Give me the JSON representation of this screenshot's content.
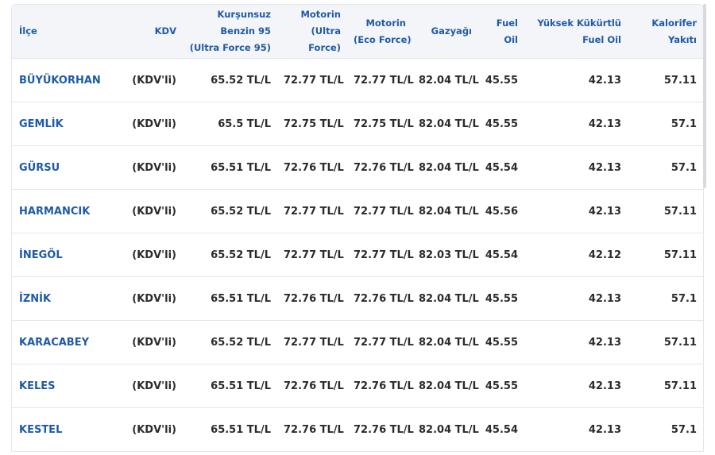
{
  "table": {
    "headers": [
      [
        "İlçe"
      ],
      [
        "KDV"
      ],
      [
        "Kurşunsuz",
        "Benzin 95",
        "(Ultra Force 95)"
      ],
      [
        "Motorin",
        "(Ultra",
        "Force)"
      ],
      [
        "Motorin",
        "(Eco Force)"
      ],
      [
        "Gazyağı"
      ],
      [
        "Fuel",
        "Oil"
      ],
      [
        "Yüksek Kükürtlü",
        "Fuel Oil"
      ],
      [
        "Kalorifer",
        "Yakıtı"
      ]
    ],
    "rows": [
      [
        "BÜYÜKORHAN",
        "(KDV'li)",
        "65.52 TL/L",
        "72.77 TL/L",
        "72.77 TL/L",
        "82.04 TL/L",
        "45.55",
        "42.13",
        "57.11"
      ],
      [
        "GEMLİK",
        "(KDV'li)",
        "65.5 TL/L",
        "72.75 TL/L",
        "72.75 TL/L",
        "82.04 TL/L",
        "45.55",
        "42.13",
        "57.1"
      ],
      [
        "GÜRSU",
        "(KDV'li)",
        "65.51 TL/L",
        "72.76 TL/L",
        "72.76 TL/L",
        "82.04 TL/L",
        "45.54",
        "42.13",
        "57.1"
      ],
      [
        "HARMANCIK",
        "(KDV'li)",
        "65.52 TL/L",
        "72.77 TL/L",
        "72.77 TL/L",
        "82.04 TL/L",
        "45.56",
        "42.13",
        "57.11"
      ],
      [
        "İNEGÖL",
        "(KDV'li)",
        "65.52 TL/L",
        "72.77 TL/L",
        "72.77 TL/L",
        "82.03 TL/L",
        "45.54",
        "42.12",
        "57.11"
      ],
      [
        "İZNİK",
        "(KDV'li)",
        "65.51 TL/L",
        "72.76 TL/L",
        "72.76 TL/L",
        "82.04 TL/L",
        "45.55",
        "42.13",
        "57.1"
      ],
      [
        "KARACABEY",
        "(KDV'li)",
        "65.52 TL/L",
        "72.77 TL/L",
        "72.77 TL/L",
        "82.04 TL/L",
        "45.55",
        "42.13",
        "57.11"
      ],
      [
        "KELES",
        "(KDV'li)",
        "65.51 TL/L",
        "72.76 TL/L",
        "72.76 TL/L",
        "82.04 TL/L",
        "45.55",
        "42.13",
        "57.11"
      ],
      [
        "KESTEL",
        "(KDV'li)",
        "65.51 TL/L",
        "72.76 TL/L",
        "72.76 TL/L",
        "82.04 TL/L",
        "45.54",
        "42.13",
        "57.1"
      ]
    ]
  }
}
